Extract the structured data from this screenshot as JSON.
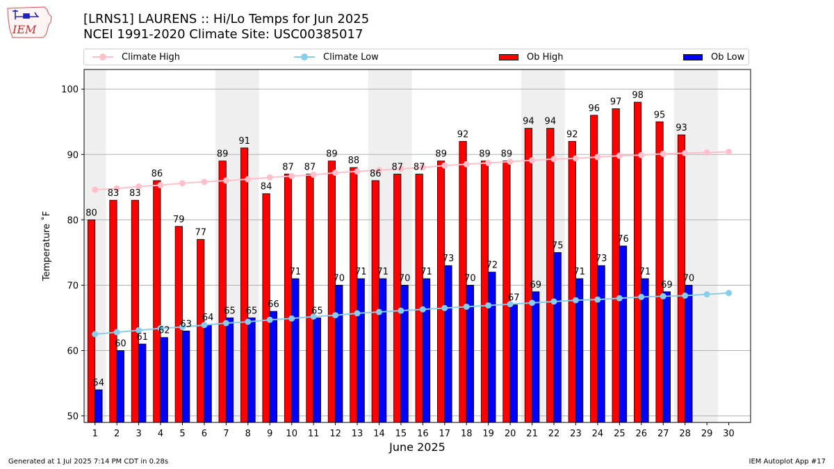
{
  "logo": {
    "text": "IEM",
    "icon": "iowa-state-outline-logo-icon"
  },
  "title": {
    "line1": "[LRNS1] LAURENS :: Hi/Lo Temps for Jun 2025",
    "line2": "NCEI 1991-2020 Climate Site: USC00385017"
  },
  "legend": {
    "climate_high": "Climate High",
    "climate_low": "Climate Low",
    "ob_high": "Ob High",
    "ob_low": "Ob Low"
  },
  "footer": {
    "left": "Generated at 1 Jul 2025 7:14 PM CDT in 0.28s",
    "right": "IEM Autoplot App #17"
  },
  "colors": {
    "ob_high": "#ff0000",
    "ob_low": "#0000ff",
    "climate_high": "#ffc0cb",
    "climate_low": "#87ceeb",
    "weekend_shade": "#efefef",
    "grid": "#b0b0b0"
  },
  "chart_data": {
    "type": "bar",
    "xlabel": "June 2025",
    "ylabel": "Temperature ˚F",
    "ylim": [
      49,
      103
    ],
    "yticks": [
      50,
      60,
      70,
      80,
      90,
      100
    ],
    "grid": "horizontal",
    "legend_position": "top",
    "categories": [
      "1",
      "2",
      "3",
      "4",
      "5",
      "6",
      "7",
      "8",
      "9",
      "10",
      "11",
      "12",
      "13",
      "14",
      "15",
      "16",
      "17",
      "18",
      "19",
      "20",
      "21",
      "22",
      "23",
      "24",
      "25",
      "26",
      "27",
      "28",
      "29",
      "30"
    ],
    "shaded_days": [
      1,
      7,
      8,
      14,
      15,
      21,
      22,
      28,
      29
    ],
    "series": [
      {
        "name": "Ob High",
        "kind": "bar",
        "values": [
          80,
          83,
          83,
          86,
          79,
          77,
          89,
          91,
          84,
          87,
          87,
          89,
          88,
          86,
          87,
          87,
          89,
          92,
          89,
          89,
          94,
          94,
          92,
          96,
          97,
          98,
          95,
          93,
          null,
          null
        ]
      },
      {
        "name": "Ob Low",
        "kind": "bar",
        "values": [
          54,
          60,
          61,
          62,
          63,
          64,
          65,
          65,
          66,
          71,
          65,
          70,
          71,
          71,
          70,
          71,
          73,
          70,
          72,
          67,
          69,
          75,
          71,
          73,
          76,
          71,
          69,
          70,
          null,
          null
        ]
      },
      {
        "name": "Climate High",
        "kind": "line",
        "values": [
          84.6,
          84.8,
          85.1,
          85.3,
          85.6,
          85.8,
          86.0,
          86.2,
          86.5,
          86.7,
          86.9,
          87.2,
          87.4,
          87.6,
          87.8,
          88.0,
          88.3,
          88.5,
          88.7,
          88.9,
          89.1,
          89.3,
          89.4,
          89.6,
          89.8,
          89.9,
          90.1,
          90.2,
          90.3,
          90.4
        ]
      },
      {
        "name": "Climate Low",
        "kind": "line",
        "values": [
          62.5,
          62.8,
          63.1,
          63.4,
          63.6,
          63.9,
          64.2,
          64.4,
          64.7,
          64.9,
          65.2,
          65.4,
          65.7,
          65.9,
          66.1,
          66.3,
          66.5,
          66.7,
          66.9,
          67.1,
          67.3,
          67.5,
          67.7,
          67.8,
          68.0,
          68.2,
          68.3,
          68.4,
          68.6,
          68.8
        ]
      }
    ]
  }
}
